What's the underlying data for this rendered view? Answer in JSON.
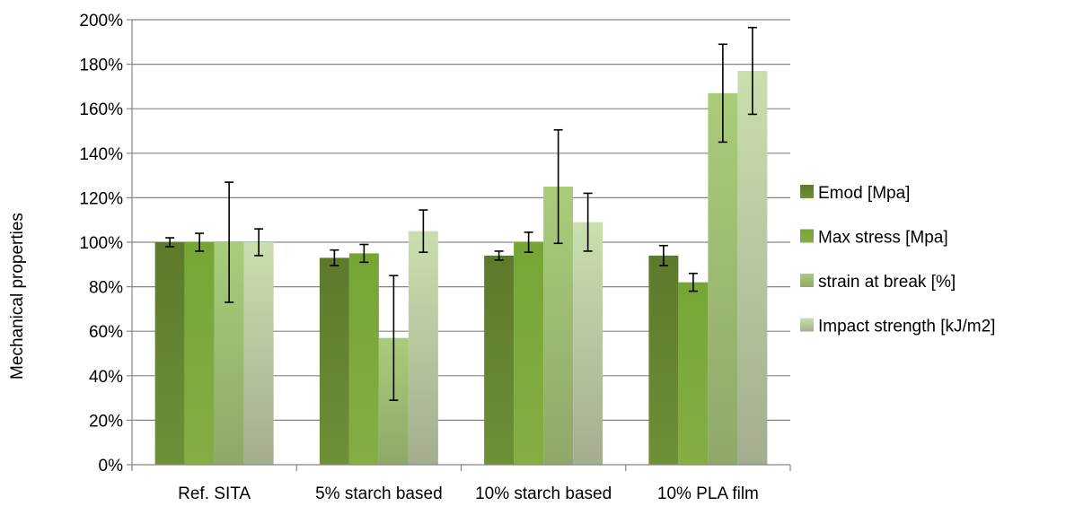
{
  "chart_data": {
    "type": "bar",
    "title": "",
    "xlabel": "",
    "ylabel": "Mechanical properties",
    "ylim": [
      0,
      200
    ],
    "y_ticks": [
      "0%",
      "20%",
      "40%",
      "60%",
      "80%",
      "100%",
      "120%",
      "140%",
      "160%",
      "180%",
      "200%"
    ],
    "y_unit": "%",
    "grid": "horizontal",
    "legend_position": "right",
    "categories": [
      "Ref. SITA",
      "5% starch based",
      "10% starch based",
      "10% PLA film"
    ],
    "series": [
      {
        "name": "Emod [Mpa]",
        "color_top": "#5c7a2a",
        "color_bottom": "#6f8f38",
        "values": [
          100,
          93,
          94,
          94
        ],
        "errors": [
          2,
          3.5,
          2,
          4.5
        ]
      },
      {
        "name": "Max stress [Mpa]",
        "color_top": "#76a535",
        "color_bottom": "#85ad44",
        "values": [
          100,
          95,
          100,
          82
        ],
        "errors": [
          4,
          4,
          4.5,
          4
        ]
      },
      {
        "name": "strain at break [%]",
        "color_top": "#a9cc7a",
        "color_bottom": "#8fa86a",
        "values": [
          100,
          57,
          125,
          167
        ],
        "errors": [
          27,
          28,
          25.5,
          22
        ]
      },
      {
        "name": "Impact strength [kJ/m2]",
        "color_top": "#c9dfae",
        "color_bottom": "#a4ad8f",
        "values": [
          100,
          105,
          109,
          177
        ],
        "errors": [
          6,
          9.5,
          13,
          19.5
        ]
      }
    ]
  }
}
